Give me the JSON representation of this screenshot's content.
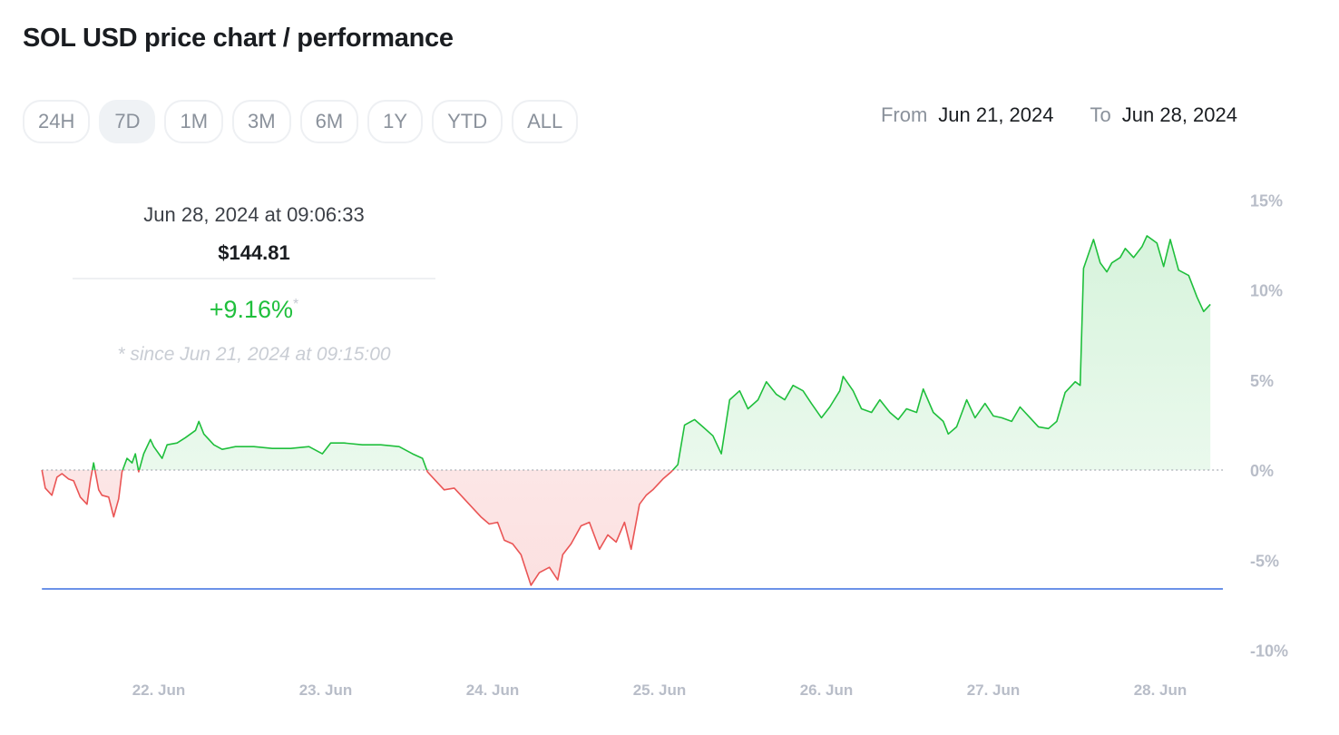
{
  "header": {
    "title": "SOL USD price chart / performance"
  },
  "ranges": [
    {
      "label": "24H",
      "active": false
    },
    {
      "label": "7D",
      "active": true
    },
    {
      "label": "1M",
      "active": false
    },
    {
      "label": "3M",
      "active": false
    },
    {
      "label": "6M",
      "active": false
    },
    {
      "label": "1Y",
      "active": false
    },
    {
      "label": "YTD",
      "active": false
    },
    {
      "label": "ALL",
      "active": false
    }
  ],
  "date_range": {
    "from_label": "From",
    "from": "Jun 21, 2024",
    "to_label": "To",
    "to": "Jun 28, 2024"
  },
  "tooltip": {
    "time": "Jun 28, 2024 at 09:06:33",
    "price": "$144.81",
    "change": "+9.16%",
    "asterisk": "*",
    "since": "* since Jun 21, 2024 at 09:15:00"
  },
  "colors": {
    "up": "#1fbf3c",
    "down": "#ea5555",
    "min_line": "#3a6fe0",
    "axis_text": "#b8bdc8"
  },
  "chart_data": {
    "type": "area",
    "x_unit": "days since Jun 21, 2024 00:00",
    "y_unit": "% change",
    "ylim": [
      -10,
      15
    ],
    "yticks": [
      15,
      10,
      5,
      0,
      -5,
      -10
    ],
    "ytick_labels": [
      "15%",
      "10%",
      "5%",
      "0%",
      "-5%",
      "-10%"
    ],
    "xticks": [
      1,
      2,
      3,
      4,
      5,
      6,
      7
    ],
    "xtick_labels": [
      "22. Jun",
      "23. Jun",
      "24. Jun",
      "25. Jun",
      "26. Jun",
      "27. Jun",
      "28. Jun"
    ],
    "baseline": 0,
    "min_line": -6.6,
    "t": [
      0.3,
      0.32,
      0.36,
      0.39,
      0.42,
      0.46,
      0.49,
      0.53,
      0.57,
      0.59,
      0.61,
      0.64,
      0.66,
      0.7,
      0.73,
      0.76,
      0.78,
      0.81,
      0.84,
      0.86,
      0.88,
      0.91,
      0.95,
      0.97,
      1.02,
      1.05,
      1.11,
      1.16,
      1.22,
      1.24,
      1.27,
      1.33,
      1.38,
      1.46,
      1.57,
      1.68,
      1.79,
      1.9,
      1.98,
      2.03,
      2.11,
      2.22,
      2.33,
      2.44,
      2.52,
      2.58,
      2.61,
      2.66,
      2.71,
      2.77,
      2.82,
      2.88,
      2.93,
      2.98,
      3.03,
      3.07,
      3.12,
      3.17,
      3.23,
      3.28,
      3.34,
      3.39,
      3.42,
      3.47,
      3.53,
      3.58,
      3.64,
      3.69,
      3.74,
      3.79,
      3.83,
      3.88,
      3.92,
      3.96,
      4.02,
      4.07,
      4.11,
      4.15,
      4.21,
      4.26,
      4.32,
      4.37,
      4.42,
      4.48,
      4.53,
      4.59,
      4.64,
      4.7,
      4.75,
      4.8,
      4.86,
      4.91,
      4.97,
      5.02,
      5.08,
      5.1,
      5.16,
      5.21,
      5.27,
      5.32,
      5.38,
      5.43,
      5.48,
      5.54,
      5.58,
      5.64,
      5.7,
      5.73,
      5.78,
      5.84,
      5.89,
      5.95,
      6.0,
      6.05,
      6.11,
      6.16,
      6.22,
      6.27,
      6.33,
      6.38,
      6.43,
      6.49,
      6.52,
      6.54,
      6.6,
      6.64,
      6.68,
      6.71,
      6.76,
      6.79,
      6.84,
      6.89,
      6.92,
      6.98,
      7.02,
      7.06,
      7.11,
      7.17,
      7.22,
      7.26,
      7.3
    ],
    "values": [
      0,
      -1.0,
      -1.4,
      -0.4,
      -0.2,
      -0.5,
      -0.6,
      -1.5,
      -1.9,
      -0.6,
      0.4,
      -1.1,
      -1.4,
      -1.5,
      -2.6,
      -1.6,
      -0.1,
      0.65,
      0.4,
      0.9,
      -0.1,
      0.9,
      1.7,
      1.3,
      0.65,
      1.4,
      1.5,
      1.8,
      2.2,
      2.7,
      2.0,
      1.4,
      1.15,
      1.3,
      1.3,
      1.2,
      1.2,
      1.3,
      0.9,
      1.5,
      1.5,
      1.4,
      1.4,
      1.3,
      0.9,
      0.65,
      -0.1,
      -0.6,
      -1.1,
      -1.0,
      -1.5,
      -2.1,
      -2.6,
      -3.0,
      -2.9,
      -3.9,
      -4.1,
      -4.7,
      -6.4,
      -5.7,
      -5.4,
      -6.1,
      -4.7,
      -4.1,
      -3.1,
      -2.9,
      -4.4,
      -3.6,
      -4.0,
      -2.9,
      -4.4,
      -1.9,
      -1.4,
      -1.1,
      -0.5,
      -0.1,
      0.3,
      2.5,
      2.8,
      2.4,
      1.9,
      0.9,
      3.9,
      4.4,
      3.4,
      3.9,
      4.9,
      4.2,
      3.9,
      4.7,
      4.4,
      3.7,
      2.9,
      3.5,
      4.4,
      5.2,
      4.4,
      3.4,
      3.2,
      3.9,
      3.2,
      2.8,
      3.4,
      3.2,
      4.5,
      3.2,
      2.7,
      2.0,
      2.4,
      3.9,
      2.9,
      3.7,
      3.0,
      2.9,
      2.7,
      3.5,
      2.9,
      2.4,
      2.3,
      2.7,
      4.3,
      4.9,
      4.7,
      11.2,
      12.8,
      11.5,
      11.0,
      11.5,
      11.8,
      12.3,
      11.8,
      12.4,
      13.0,
      12.6,
      11.3,
      12.8,
      11.1,
      10.8,
      9.6,
      8.8,
      9.2
    ]
  }
}
